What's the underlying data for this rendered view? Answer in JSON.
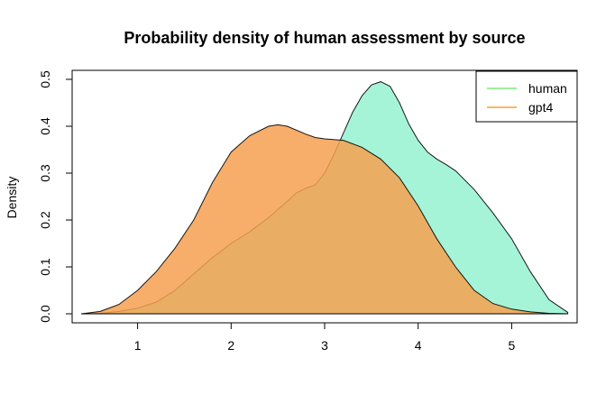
{
  "chart_data": {
    "type": "area",
    "title": "Probability density of human assessment by source",
    "xlabel": "",
    "ylabel": "Density",
    "xlim": [
      0.3,
      5.7
    ],
    "ylim": [
      0,
      0.5
    ],
    "x_ticks": [
      "1",
      "2",
      "3",
      "4",
      "5"
    ],
    "y_ticks": [
      "0.0",
      "0.1",
      "0.2",
      "0.3",
      "0.4",
      "0.5"
    ],
    "legend_position": "top-right",
    "grid": false,
    "series": [
      {
        "name": "human",
        "color": "#a6f4d8",
        "legend_color": "#7fe87f",
        "x": [
          0.4,
          0.6,
          0.8,
          1.0,
          1.2,
          1.4,
          1.6,
          1.8,
          2.0,
          2.2,
          2.4,
          2.6,
          2.7,
          2.8,
          2.9,
          3.0,
          3.1,
          3.2,
          3.3,
          3.4,
          3.5,
          3.6,
          3.7,
          3.8,
          3.9,
          4.0,
          4.1,
          4.2,
          4.3,
          4.4,
          4.6,
          4.8,
          5.0,
          5.2,
          5.4,
          5.6
        ],
        "values": [
          0.0,
          0.001,
          0.005,
          0.012,
          0.025,
          0.05,
          0.085,
          0.12,
          0.15,
          0.175,
          0.205,
          0.24,
          0.258,
          0.268,
          0.275,
          0.3,
          0.34,
          0.385,
          0.43,
          0.465,
          0.488,
          0.495,
          0.485,
          0.45,
          0.405,
          0.37,
          0.345,
          0.33,
          0.318,
          0.305,
          0.265,
          0.215,
          0.16,
          0.09,
          0.03,
          0.003
        ]
      },
      {
        "name": "gpt4",
        "color": "#f5a050",
        "legend_color": "#f5a030",
        "x": [
          0.4,
          0.6,
          0.8,
          1.0,
          1.2,
          1.4,
          1.6,
          1.8,
          2.0,
          2.2,
          2.4,
          2.5,
          2.6,
          2.8,
          2.9,
          3.0,
          3.2,
          3.4,
          3.6,
          3.8,
          4.0,
          4.2,
          4.4,
          4.6,
          4.8,
          5.0,
          5.2,
          5.4,
          5.6
        ],
        "values": [
          0.0,
          0.005,
          0.02,
          0.05,
          0.09,
          0.14,
          0.2,
          0.28,
          0.345,
          0.38,
          0.4,
          0.403,
          0.4,
          0.383,
          0.376,
          0.373,
          0.37,
          0.355,
          0.33,
          0.29,
          0.23,
          0.16,
          0.1,
          0.05,
          0.022,
          0.01,
          0.004,
          0.001,
          0.0
        ]
      }
    ]
  }
}
